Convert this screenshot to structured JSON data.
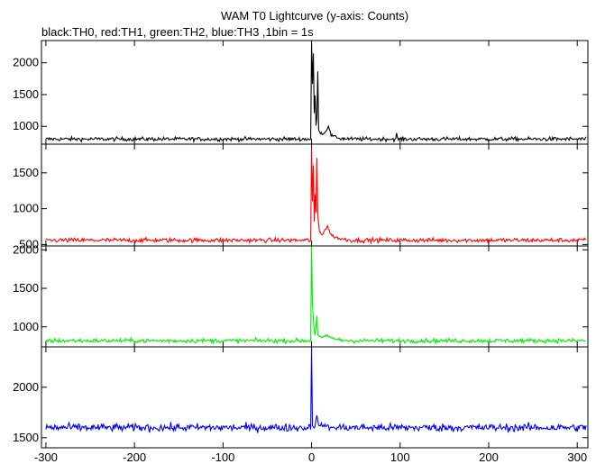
{
  "chart_data": {
    "type": "line",
    "title": "WAM T0 Lightcurve (y-axis: Counts)",
    "subtitle": "black:TH0, red:TH1, green:TH2, blue:TH3 ,1bin = 1s",
    "xlabel": "",
    "xlim": [
      -305,
      312
    ],
    "x_ticks": [
      -300,
      -200,
      -100,
      0,
      100,
      200,
      300
    ],
    "grid": false,
    "panels": [
      {
        "series_name": "TH0",
        "color": "#000000",
        "ylim": [
          720,
          2350
        ],
        "y_ticks": [
          1000,
          1500,
          2000
        ],
        "baseline": 800,
        "noise": 22,
        "points": [
          [
            -6,
            800
          ],
          [
            -1,
            800
          ],
          [
            0,
            2300
          ],
          [
            1,
            1650
          ],
          [
            2,
            2150
          ],
          [
            3,
            1200
          ],
          [
            4,
            1500
          ],
          [
            5,
            1000
          ],
          [
            6,
            1150
          ],
          [
            7,
            1850
          ],
          [
            8,
            950
          ],
          [
            10,
            900
          ],
          [
            13,
            880
          ],
          [
            16,
            920
          ],
          [
            19,
            1010
          ],
          [
            22,
            860
          ],
          [
            26,
            840
          ],
          [
            32,
            810
          ],
          [
            45,
            800
          ],
          [
            300,
            800
          ]
        ],
        "bumps": [
          [
            96,
            880
          ]
        ]
      },
      {
        "series_name": "TH1",
        "color": "#ff0000",
        "ylim": [
          480,
          1900
        ],
        "y_ticks": [
          500,
          1000,
          1500
        ],
        "baseline": 560,
        "noise": 22,
        "points": [
          [
            -6,
            560
          ],
          [
            -1,
            560
          ],
          [
            0,
            1850
          ],
          [
            1,
            1100
          ],
          [
            2,
            1600
          ],
          [
            3,
            800
          ],
          [
            4,
            1200
          ],
          [
            5,
            950
          ],
          [
            6,
            1700
          ],
          [
            7,
            900
          ],
          [
            9,
            680
          ],
          [
            12,
            640
          ],
          [
            15,
            700
          ],
          [
            18,
            760
          ],
          [
            21,
            650
          ],
          [
            25,
            610
          ],
          [
            32,
            580
          ],
          [
            45,
            560
          ],
          [
            300,
            560
          ]
        ],
        "bumps": []
      },
      {
        "series_name": "TH2",
        "color": "#00ee00",
        "ylim": [
          740,
          2050
        ],
        "y_ticks": [
          1000,
          1500,
          2000
        ],
        "baseline": 820,
        "noise": 20,
        "points": [
          [
            -6,
            820
          ],
          [
            -1,
            820
          ],
          [
            0,
            2050
          ],
          [
            1,
            1300
          ],
          [
            2,
            1100
          ],
          [
            3,
            950
          ],
          [
            4,
            900
          ],
          [
            5,
            1000
          ],
          [
            6,
            1150
          ],
          [
            7,
            900
          ],
          [
            9,
            870
          ],
          [
            12,
            860
          ],
          [
            16,
            880
          ],
          [
            20,
            870
          ],
          [
            30,
            830
          ],
          [
            45,
            820
          ],
          [
            300,
            820
          ]
        ],
        "bumps": []
      },
      {
        "series_name": "TH3",
        "color": "#0000ff",
        "ylim": [
          1400,
          2400
        ],
        "y_ticks": [
          1500,
          2000
        ],
        "baseline": 1600,
        "noise": 28,
        "points": [
          [
            -3,
            1600
          ],
          [
            -1,
            1600
          ],
          [
            0,
            2400
          ],
          [
            1,
            1620
          ],
          [
            3,
            1610
          ],
          [
            6,
            1700
          ],
          [
            8,
            1620
          ],
          [
            12,
            1630
          ],
          [
            20,
            1600
          ],
          [
            300,
            1600
          ]
        ],
        "bumps": []
      }
    ]
  }
}
